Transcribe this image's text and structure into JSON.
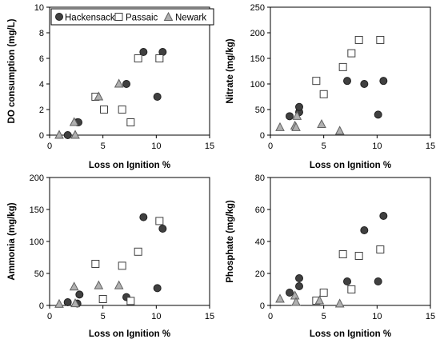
{
  "series_styles": [
    {
      "name": "Hackensack",
      "marker": "circle",
      "fill": "#404040",
      "stroke": "#202020"
    },
    {
      "name": "Passaic",
      "marker": "square",
      "fill": "#ffffff",
      "stroke": "#404040"
    },
    {
      "name": "Newark",
      "marker": "triangle",
      "fill": "#b0b0b0",
      "stroke": "#606060"
    }
  ],
  "chart_data": [
    {
      "type": "scatter",
      "xlabel": "Loss on Ignition %",
      "ylabel": "DO consumption (mg/L)",
      "xlim": [
        0,
        15
      ],
      "ylim": [
        0,
        10
      ],
      "xticks": [
        0,
        5,
        10,
        15
      ],
      "yticks": [
        0,
        2,
        4,
        6,
        8,
        10
      ],
      "grid": false,
      "legend": "top-left",
      "series": [
        {
          "name": "Hackensack",
          "points": [
            [
              1.7,
              0
            ],
            [
              2.6,
              1.0
            ],
            [
              2.7,
              1.0
            ],
            [
              7.2,
              4.0
            ],
            [
              8.8,
              6.5
            ],
            [
              10.1,
              3.0
            ],
            [
              10.6,
              6.5
            ]
          ]
        },
        {
          "name": "Passaic",
          "points": [
            [
              4.3,
              3.0
            ],
            [
              5.1,
              2.0
            ],
            [
              6.8,
              2.0
            ],
            [
              7.6,
              1.0
            ],
            [
              8.3,
              6.0
            ],
            [
              10.3,
              6.0
            ]
          ]
        },
        {
          "name": "Newark",
          "points": [
            [
              0.9,
              0
            ],
            [
              2.3,
              1.0
            ],
            [
              2.4,
              0
            ],
            [
              4.6,
              3.0
            ],
            [
              6.5,
              4.0
            ]
          ]
        }
      ]
    },
    {
      "type": "scatter",
      "xlabel": "Loss on Ignition %",
      "ylabel": "Nitrate (mg/kg)",
      "xlim": [
        0,
        15
      ],
      "ylim": [
        0,
        250
      ],
      "xticks": [
        0,
        5,
        10,
        15
      ],
      "yticks": [
        0,
        50,
        100,
        150,
        200,
        250
      ],
      "grid": false,
      "series": [
        {
          "name": "Hackensack",
          "points": [
            [
              1.8,
              37
            ],
            [
              2.7,
              45
            ],
            [
              2.7,
              55
            ],
            [
              7.2,
              106
            ],
            [
              8.8,
              100
            ],
            [
              10.1,
              40
            ],
            [
              10.6,
              106
            ]
          ]
        },
        {
          "name": "Passaic",
          "points": [
            [
              4.3,
              106
            ],
            [
              5.0,
              80
            ],
            [
              6.8,
              133
            ],
            [
              7.6,
              160
            ],
            [
              8.3,
              186
            ],
            [
              10.3,
              186
            ]
          ]
        },
        {
          "name": "Newark",
          "points": [
            [
              0.9,
              15
            ],
            [
              2.3,
              18
            ],
            [
              2.4,
              15
            ],
            [
              2.5,
              37
            ],
            [
              4.8,
              21
            ],
            [
              6.5,
              8
            ]
          ]
        }
      ]
    },
    {
      "type": "scatter",
      "xlabel": "Loss on Ignition %",
      "ylabel": "Ammonia (mg/kg)",
      "xlim": [
        0,
        15
      ],
      "ylim": [
        0,
        200
      ],
      "xticks": [
        0,
        5,
        10,
        15
      ],
      "yticks": [
        0,
        50,
        100,
        150,
        200
      ],
      "grid": false,
      "series": [
        {
          "name": "Hackensack",
          "points": [
            [
              1.7,
              5
            ],
            [
              2.6,
              3
            ],
            [
              2.8,
              17
            ],
            [
              7.2,
              13
            ],
            [
              8.8,
              138
            ],
            [
              10.1,
              27
            ],
            [
              10.6,
              120
            ]
          ]
        },
        {
          "name": "Passaic",
          "points": [
            [
              4.3,
              65
            ],
            [
              5.0,
              10
            ],
            [
              6.8,
              62
            ],
            [
              7.6,
              7
            ],
            [
              8.3,
              84
            ],
            [
              10.3,
              132
            ]
          ]
        },
        {
          "name": "Newark",
          "points": [
            [
              0.9,
              2
            ],
            [
              2.3,
              29
            ],
            [
              2.4,
              3
            ],
            [
              4.6,
              31
            ],
            [
              6.5,
              31
            ]
          ]
        }
      ]
    },
    {
      "type": "scatter",
      "xlabel": "Loss on Ignition %",
      "ylabel": "Phosphate (mg/kg)",
      "xlim": [
        0,
        15
      ],
      "ylim": [
        0,
        80
      ],
      "xticks": [
        0,
        5,
        10,
        15
      ],
      "yticks": [
        0,
        20,
        40,
        60,
        80
      ],
      "grid": false,
      "series": [
        {
          "name": "Hackensack",
          "points": [
            [
              1.8,
              8
            ],
            [
              2.7,
              12
            ],
            [
              2.7,
              17
            ],
            [
              7.2,
              15
            ],
            [
              8.8,
              47
            ],
            [
              10.1,
              15
            ],
            [
              10.6,
              56
            ]
          ]
        },
        {
          "name": "Passaic",
          "points": [
            [
              4.3,
              3
            ],
            [
              5.0,
              8
            ],
            [
              6.8,
              32
            ],
            [
              7.6,
              10
            ],
            [
              8.3,
              31
            ],
            [
              10.3,
              35
            ]
          ]
        },
        {
          "name": "Newark",
          "points": [
            [
              0.9,
              4
            ],
            [
              2.3,
              6
            ],
            [
              2.4,
              2
            ],
            [
              4.6,
              3
            ],
            [
              6.5,
              1
            ]
          ]
        }
      ]
    }
  ]
}
